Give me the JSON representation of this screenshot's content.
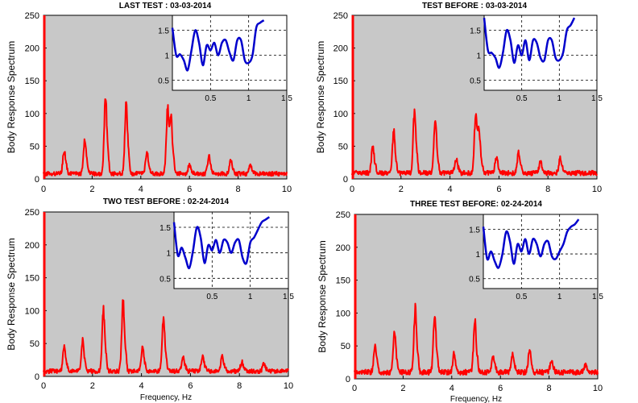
{
  "chart_data": [
    {
      "type": "line",
      "title": "LAST TEST : 03-03-2014",
      "ylabel": "Body Response Spectrum",
      "xlabel": "",
      "xlim": [
        0,
        10
      ],
      "ylim": [
        0,
        250
      ],
      "xticks": [
        "0",
        "2",
        "4",
        "6",
        "8",
        "10"
      ],
      "yticks": [
        "0",
        "50",
        "100",
        "150",
        "200",
        "250"
      ],
      "background": "#c8c8c8",
      "series": [
        {
          "color": "#ff0000",
          "baseline": 8,
          "peaks": [
            [
              0.85,
              40
            ],
            [
              1.7,
              57
            ],
            [
              2.55,
              125
            ],
            [
              3.4,
              117
            ],
            [
              4.25,
              35
            ],
            [
              5.1,
              105
            ],
            [
              5.25,
              80
            ],
            [
              6.0,
              15
            ],
            [
              6.8,
              28
            ],
            [
              7.7,
              22
            ],
            [
              8.5,
              15
            ]
          ]
        }
      ],
      "inset": {
        "type": "line",
        "xlim": [
          0,
          1.5
        ],
        "ylim": [
          0.3,
          1.8
        ],
        "xticks": [
          "0.5",
          "1",
          "1.5"
        ],
        "yticks": [
          "0.5",
          "1",
          "1.5"
        ],
        "grid": "dashed",
        "series": [
          {
            "color": "#0000cc",
            "x": [
              0.0,
              0.05,
              0.1,
              0.15,
              0.2,
              0.25,
              0.3,
              0.35,
              0.4,
              0.45,
              0.5,
              0.55,
              0.6,
              0.65,
              0.7,
              0.75,
              0.8,
              0.85,
              0.9,
              0.95,
              1.0,
              1.05,
              1.1,
              1.15,
              1.2
            ],
            "y": [
              1.55,
              1.0,
              1.02,
              0.9,
              0.7,
              1.1,
              1.5,
              1.25,
              0.8,
              1.2,
              1.1,
              1.25,
              1.0,
              1.25,
              1.3,
              1.05,
              0.9,
              1.3,
              1.3,
              0.9,
              0.85,
              1.0,
              1.55,
              1.65,
              1.7
            ]
          }
        ]
      }
    },
    {
      "type": "line",
      "title": "TEST BEFORE : 03-03-2014",
      "ylabel": "Body Response Spectrum",
      "xlabel": "",
      "xlim": [
        0,
        10
      ],
      "ylim": [
        0,
        250
      ],
      "xticks": [
        "0",
        "2",
        "4",
        "6",
        "8",
        "10"
      ],
      "yticks": [
        "0",
        "50",
        "100",
        "150",
        "200",
        "250"
      ],
      "background": "#c8c8c8",
      "series": [
        {
          "color": "#ff0000",
          "baseline": 9,
          "peaks": [
            [
              0.85,
              45
            ],
            [
              1.7,
              67
            ],
            [
              2.55,
              103
            ],
            [
              3.4,
              88
            ],
            [
              4.25,
              25
            ],
            [
              5.05,
              95
            ],
            [
              5.2,
              60
            ],
            [
              5.9,
              25
            ],
            [
              6.8,
              35
            ],
            [
              7.7,
              20
            ],
            [
              8.5,
              25
            ]
          ]
        }
      ],
      "inset": {
        "type": "line",
        "xlim": [
          0,
          1.5
        ],
        "ylim": [
          0.3,
          1.8
        ],
        "xticks": [
          "0.5",
          "1",
          "1.5"
        ],
        "yticks": [
          "0.5",
          "1",
          "1.5"
        ],
        "grid": "dashed",
        "series": [
          {
            "color": "#0000cc",
            "x": [
              0.0,
              0.05,
              0.1,
              0.15,
              0.2,
              0.25,
              0.3,
              0.35,
              0.4,
              0.45,
              0.5,
              0.55,
              0.6,
              0.65,
              0.7,
              0.75,
              0.8,
              0.85,
              0.9,
              0.95,
              1.0,
              1.05,
              1.1,
              1.15,
              1.2
            ],
            "y": [
              1.75,
              1.1,
              1.05,
              0.95,
              0.75,
              1.05,
              1.5,
              1.3,
              0.85,
              1.2,
              1.0,
              1.3,
              0.9,
              1.3,
              1.25,
              0.95,
              0.9,
              1.3,
              1.3,
              0.95,
              0.9,
              1.05,
              1.5,
              1.6,
              1.75
            ]
          }
        ]
      }
    },
    {
      "type": "line",
      "title": "TWO TEST BEFORE : 02-24-2014",
      "ylabel": "Body Response Spectrum",
      "xlabel": "Frequency, Hz",
      "xlim": [
        0,
        10
      ],
      "ylim": [
        0,
        250
      ],
      "xticks": [
        "0",
        "2",
        "4",
        "6",
        "8",
        "10"
      ],
      "yticks": [
        "0",
        "50",
        "100",
        "150",
        "200",
        "250"
      ],
      "background": "#c8c8c8",
      "series": [
        {
          "color": "#ff0000",
          "baseline": 8,
          "peaks": [
            [
              0.85,
              40
            ],
            [
              1.6,
              50
            ],
            [
              2.45,
              100
            ],
            [
              3.25,
              115
            ],
            [
              4.05,
              40
            ],
            [
              4.9,
              88
            ],
            [
              5.7,
              25
            ],
            [
              6.5,
              25
            ],
            [
              7.3,
              25
            ],
            [
              8.1,
              15
            ],
            [
              9.0,
              12
            ]
          ]
        }
      ],
      "inset": {
        "type": "line",
        "xlim": [
          0,
          1.5
        ],
        "ylim": [
          0.3,
          1.8
        ],
        "xticks": [
          "0.5",
          "1",
          "1.5"
        ],
        "yticks": [
          "0.5",
          "1",
          "1.5"
        ],
        "grid": "dashed",
        "series": [
          {
            "color": "#0000cc",
            "x": [
              0.0,
              0.05,
              0.1,
              0.15,
              0.2,
              0.25,
              0.3,
              0.35,
              0.4,
              0.45,
              0.5,
              0.55,
              0.6,
              0.65,
              0.7,
              0.75,
              0.8,
              0.85,
              0.9,
              0.95,
              1.0,
              1.05,
              1.1,
              1.15,
              1.2,
              1.25
            ],
            "y": [
              1.6,
              0.95,
              1.1,
              0.9,
              0.7,
              1.05,
              1.5,
              1.3,
              0.8,
              1.15,
              1.05,
              1.25,
              1.0,
              1.25,
              1.2,
              1.0,
              1.2,
              1.25,
              0.9,
              0.8,
              1.2,
              1.3,
              1.45,
              1.6,
              1.65,
              1.7
            ]
          }
        ]
      }
    },
    {
      "type": "line",
      "title": "THREE TEST BEFORE:   02-24-2014",
      "ylabel": "Body Response Spectrum",
      "xlabel": "Frequency, Hz",
      "xlim": [
        0,
        10
      ],
      "ylim": [
        0,
        250
      ],
      "xticks": [
        "0",
        "2",
        "4",
        "6",
        "8",
        "10"
      ],
      "yticks": [
        "0",
        "50",
        "100",
        "150",
        "200",
        "250"
      ],
      "background": "#c8c8c8",
      "series": [
        {
          "color": "#ff0000",
          "baseline": 10,
          "peaks": [
            [
              0.85,
              45
            ],
            [
              1.65,
              63
            ],
            [
              2.5,
              103
            ],
            [
              3.3,
              93
            ],
            [
              4.1,
              30
            ],
            [
              4.95,
              85
            ],
            [
              5.7,
              25
            ],
            [
              6.5,
              30
            ],
            [
              7.2,
              35
            ],
            [
              8.1,
              20
            ],
            [
              9.5,
              12
            ]
          ]
        }
      ],
      "inset": {
        "type": "line",
        "xlim": [
          0,
          1.5
        ],
        "ylim": [
          0.3,
          1.8
        ],
        "xticks": [
          "0.5",
          "1",
          "1.5"
        ],
        "yticks": [
          "0.5",
          "1",
          "1.5"
        ],
        "grid": "dashed",
        "series": [
          {
            "color": "#0000cc",
            "x": [
              0.0,
              0.05,
              0.1,
              0.15,
              0.2,
              0.25,
              0.3,
              0.35,
              0.4,
              0.45,
              0.5,
              0.55,
              0.6,
              0.65,
              0.7,
              0.75,
              0.8,
              0.85,
              0.9,
              0.95,
              1.0,
              1.05,
              1.1,
              1.15,
              1.2,
              1.25
            ],
            "y": [
              1.55,
              0.9,
              1.05,
              0.85,
              0.72,
              1.0,
              1.45,
              1.25,
              0.8,
              1.2,
              1.05,
              1.3,
              1.0,
              1.3,
              1.2,
              0.95,
              1.2,
              1.25,
              0.95,
              0.9,
              1.05,
              1.2,
              1.45,
              1.55,
              1.6,
              1.7
            ]
          }
        ]
      }
    }
  ]
}
